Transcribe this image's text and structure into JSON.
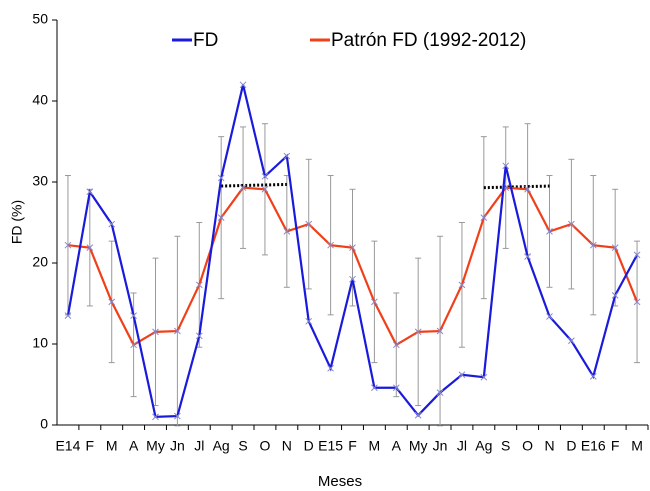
{
  "chart_data": {
    "type": "line",
    "xlabel": "Meses",
    "ylabel": "FD (%)",
    "categories": [
      "E14",
      "F",
      "M",
      "A",
      "My",
      "Jn",
      "Jl",
      "Ag",
      "S",
      "O",
      "N",
      "D",
      "E15",
      "F",
      "M",
      "A",
      "My",
      "Jn",
      "Jl",
      "Ag",
      "S",
      "O",
      "N",
      "D",
      "E16",
      "F",
      "M"
    ],
    "series": [
      {
        "name": "FD",
        "color": "#1a1adc",
        "values": [
          13.5,
          28.8,
          24.8,
          13.5,
          1.0,
          1.1,
          11.0,
          30.5,
          42.0,
          30.7,
          33.2,
          12.8,
          7.0,
          18.0,
          4.6,
          4.6,
          1.2,
          4.0,
          6.2,
          5.9,
          32.0,
          20.8,
          13.4,
          10.4,
          6.0,
          16.0,
          21.0
        ]
      },
      {
        "name": "Patrón FD (1992-2012)",
        "color": "#f0401a",
        "values": [
          22.2,
          21.9,
          15.2,
          9.9,
          11.5,
          11.6,
          17.3,
          25.6,
          29.3,
          29.1,
          23.9,
          24.8,
          22.2,
          21.9,
          15.2,
          9.9,
          11.5,
          11.6,
          17.3,
          25.6,
          29.3,
          29.1,
          23.9,
          24.8,
          22.2,
          21.9,
          15.2
        ],
        "errors": [
          8.6,
          7.2,
          7.5,
          6.4,
          9.1,
          11.7,
          7.7,
          10.0,
          7.5,
          8.1,
          6.9,
          8.0,
          8.6,
          7.2,
          7.5,
          6.4,
          9.1,
          11.7,
          7.7,
          10.0,
          7.5,
          8.1,
          6.9,
          8.0,
          8.6,
          7.2,
          7.5
        ]
      }
    ],
    "reference_lines": [
      {
        "x": [
          7,
          10
        ],
        "values": [
          29.5,
          29.7
        ]
      },
      {
        "x": [
          19,
          22
        ],
        "values": [
          29.3,
          29.5
        ]
      }
    ],
    "ylim": [
      0,
      50
    ],
    "yticks": [
      0,
      10,
      20,
      30,
      40,
      50
    ],
    "grid": false,
    "legend": "top"
  }
}
